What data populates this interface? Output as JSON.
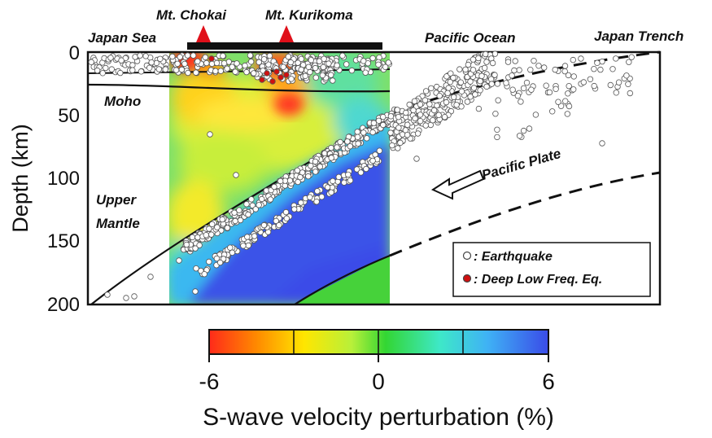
{
  "axis": {
    "ylabel": "Depth (km)",
    "ticks": [
      "0",
      "50",
      "100",
      "150",
      "200"
    ]
  },
  "top_labels": {
    "left": "Japan Sea",
    "volcano1": "Mt. Chokai",
    "volcano2": "Mt. Kurikoma",
    "right1": "Pacific Ocean",
    "right2": "Japan Trench"
  },
  "section_labels": {
    "moho": "Moho",
    "upper_mantle_1": "Upper",
    "upper_mantle_2": "Mantle",
    "plate": "Pacific Plate"
  },
  "legend": {
    "earthquake": ": Earthquake",
    "dlfe": ": Deep Low Freq. Eq."
  },
  "colorbar": {
    "min": "-6",
    "mid": "0",
    "max": "6",
    "title": "S-wave velocity perturbation (%)",
    "colors": [
      "#ff2a1a",
      "#ff8a00",
      "#ffe600",
      "#b8f03a",
      "#33d633",
      "#3ee8c8",
      "#3fb2f5",
      "#3a4be8"
    ]
  },
  "colors": {
    "volcano": "#e0101a",
    "quake_fill": "#ffffff",
    "dlfe_fill": "#d01010"
  }
}
